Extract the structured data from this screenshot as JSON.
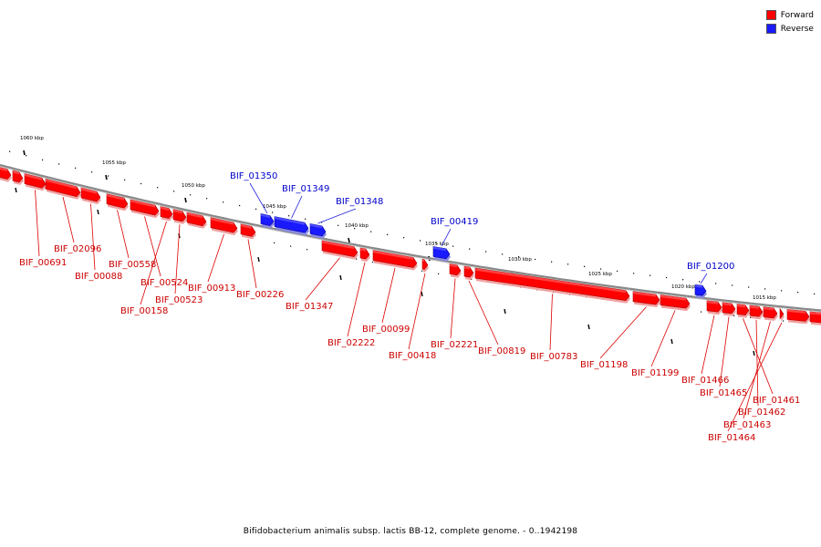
{
  "legend": {
    "forward_label": "Forward",
    "reverse_label": "Reverse",
    "forward_color": "#ff0000",
    "reverse_color": "#1a1aff"
  },
  "caption": "Bifidobacterium animalis subsp. lactis BB-12, complete genome. - 0..1942198",
  "colors": {
    "forward": "#ff0000",
    "reverse": "#1a1aff",
    "forward_label_text": "#cc0000",
    "reverse_label_text": "#0000cc",
    "backbone": "#888888"
  },
  "scale_ticks": [
    "1060 kbp",
    "1055 kbp",
    "1050 kbp",
    "1045 kbp",
    "1040 kbp",
    "1035 kbp",
    "1030 kbp",
    "1025 kbp",
    "1020 kbp",
    "1015 kbp"
  ],
  "genes": [
    {
      "label": "BIF_00691",
      "strand": "forward"
    },
    {
      "label": "BIF_02096",
      "strand": "forward"
    },
    {
      "label": "BIF_00088",
      "strand": "forward"
    },
    {
      "label": "BIF_00558",
      "strand": "forward"
    },
    {
      "label": "BIF_00524",
      "strand": "forward"
    },
    {
      "label": "BIF_00158",
      "strand": "forward"
    },
    {
      "label": "BIF_00523",
      "strand": "forward"
    },
    {
      "label": "BIF_00913",
      "strand": "forward"
    },
    {
      "label": "BIF_00226",
      "strand": "forward"
    },
    {
      "label": "BIF_01350",
      "strand": "reverse"
    },
    {
      "label": "BIF_01349",
      "strand": "reverse"
    },
    {
      "label": "BIF_01348",
      "strand": "reverse"
    },
    {
      "label": "BIF_01347",
      "strand": "forward"
    },
    {
      "label": "BIF_02222",
      "strand": "forward"
    },
    {
      "label": "BIF_00099",
      "strand": "forward"
    },
    {
      "label": "BIF_00418",
      "strand": "forward"
    },
    {
      "label": "BIF_00419",
      "strand": "reverse"
    },
    {
      "label": "BIF_02221",
      "strand": "forward"
    },
    {
      "label": "BIF_00819",
      "strand": "forward"
    },
    {
      "label": "BIF_00783",
      "strand": "forward"
    },
    {
      "label": "BIF_01198",
      "strand": "forward"
    },
    {
      "label": "BIF_01199",
      "strand": "forward"
    },
    {
      "label": "BIF_01200",
      "strand": "reverse"
    },
    {
      "label": "BIF_01466",
      "strand": "forward"
    },
    {
      "label": "BIF_01465",
      "strand": "forward"
    },
    {
      "label": "BIF_01461",
      "strand": "forward"
    },
    {
      "label": "BIF_01462",
      "strand": "forward"
    },
    {
      "label": "BIF_01463",
      "strand": "forward"
    },
    {
      "label": "BIF_01464",
      "strand": "forward"
    }
  ]
}
